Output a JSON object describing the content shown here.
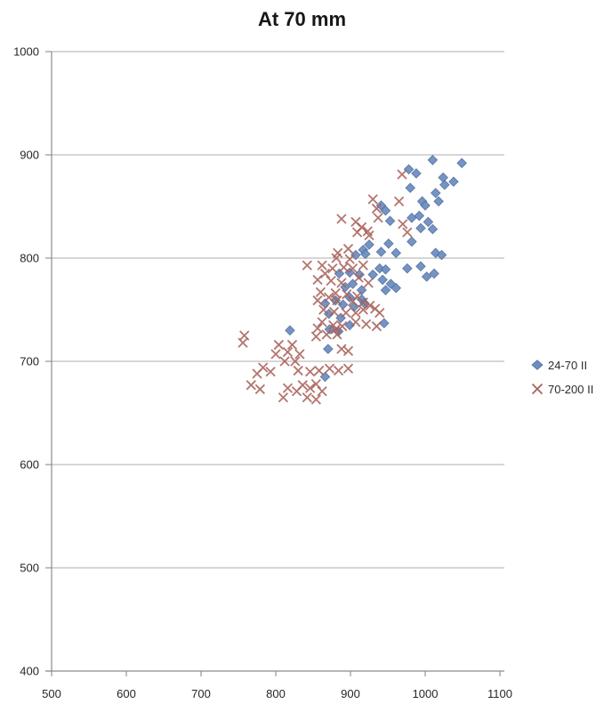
{
  "title": "At 70 mm",
  "chart_data": {
    "type": "scatter",
    "title": "At 70 mm",
    "xlabel": "",
    "ylabel": "",
    "xlim": [
      500,
      1100
    ],
    "ylim": [
      400,
      1000
    ],
    "x_ticks": [
      500,
      600,
      700,
      800,
      900,
      1000,
      1100
    ],
    "y_ticks": [
      400,
      500,
      600,
      700,
      800,
      900,
      1000
    ],
    "grid": "horizontal-only",
    "legend_position": "right-middle",
    "colors": {
      "background": "#ffffff",
      "gridline": "#adadad",
      "axis": "#8c8c8c",
      "tick_label": "#262626",
      "title": "#171717",
      "series1_fill": "#6e8ec1",
      "series1_stroke": "#4f6e9e",
      "series2_stroke": "#a8625a"
    },
    "series": [
      {
        "name": "24-70 II",
        "marker": "diamond",
        "points": [
          [
            1010,
            895
          ],
          [
            1049,
            892
          ],
          [
            978,
            886
          ],
          [
            988,
            882
          ],
          [
            1024,
            878
          ],
          [
            1038,
            874
          ],
          [
            1026,
            871
          ],
          [
            980,
            868
          ],
          [
            1014,
            863
          ],
          [
            996,
            855
          ],
          [
            1018,
            855
          ],
          [
            1000,
            851
          ],
          [
            941,
            851
          ],
          [
            947,
            846
          ],
          [
            992,
            841
          ],
          [
            982,
            839
          ],
          [
            953,
            836
          ],
          [
            1004,
            835
          ],
          [
            994,
            829
          ],
          [
            1010,
            828
          ],
          [
            982,
            816
          ],
          [
            925,
            813
          ],
          [
            951,
            814
          ],
          [
            917,
            808
          ],
          [
            961,
            805
          ],
          [
            1014,
            805
          ],
          [
            1022,
            803
          ],
          [
            941,
            806
          ],
          [
            907,
            803
          ],
          [
            920,
            804
          ],
          [
            899,
            786
          ],
          [
            885,
            785
          ],
          [
            912,
            784
          ],
          [
            930,
            784
          ],
          [
            976,
            790
          ],
          [
            994,
            792
          ],
          [
            1002,
            782
          ],
          [
            1012,
            785
          ],
          [
            939,
            790
          ],
          [
            947,
            789
          ],
          [
            943,
            779
          ],
          [
            954,
            775
          ],
          [
            903,
            775
          ],
          [
            893,
            772
          ],
          [
            915,
            769
          ],
          [
            961,
            771
          ],
          [
            947,
            769
          ],
          [
            899,
            762
          ],
          [
            915,
            760
          ],
          [
            880,
            759
          ],
          [
            919,
            756
          ],
          [
            890,
            755
          ],
          [
            905,
            753
          ],
          [
            866,
            756
          ],
          [
            871,
            746
          ],
          [
            887,
            742
          ],
          [
            945,
            737
          ],
          [
            899,
            735
          ],
          [
            872,
            731
          ],
          [
            884,
            729
          ],
          [
            819,
            730
          ],
          [
            870,
            712
          ],
          [
            866,
            685
          ]
        ]
      },
      {
        "name": "70-200 II",
        "marker": "x",
        "points": [
          [
            888,
            838
          ],
          [
            969,
            881
          ],
          [
            930,
            857
          ],
          [
            965,
            855
          ],
          [
            935,
            848
          ],
          [
            937,
            839
          ],
          [
            907,
            835
          ],
          [
            915,
            830
          ],
          [
            923,
            826
          ],
          [
            970,
            833
          ],
          [
            976,
            825
          ],
          [
            909,
            825
          ],
          [
            925,
            822
          ],
          [
            897,
            809
          ],
          [
            883,
            805
          ],
          [
            899,
            799
          ],
          [
            881,
            800
          ],
          [
            876,
            790
          ],
          [
            891,
            791
          ],
          [
            903,
            790
          ],
          [
            842,
            793
          ],
          [
            917,
            793
          ],
          [
            911,
            781
          ],
          [
            924,
            776
          ],
          [
            862,
            793
          ],
          [
            866,
            785
          ],
          [
            856,
            779
          ],
          [
            874,
            778
          ],
          [
            888,
            776
          ],
          [
            860,
            767
          ],
          [
            880,
            766
          ],
          [
            895,
            765
          ],
          [
            909,
            763
          ],
          [
            871,
            762
          ],
          [
            856,
            759
          ],
          [
            882,
            759
          ],
          [
            917,
            757
          ],
          [
            926,
            754
          ],
          [
            903,
            758
          ],
          [
            864,
            750
          ],
          [
            878,
            748
          ],
          [
            894,
            747
          ],
          [
            907,
            747
          ],
          [
            917,
            750
          ],
          [
            933,
            751
          ],
          [
            939,
            747
          ],
          [
            862,
            738
          ],
          [
            877,
            735
          ],
          [
            907,
            738
          ],
          [
            921,
            736
          ],
          [
            935,
            734
          ],
          [
            856,
            732
          ],
          [
            868,
            726
          ],
          [
            880,
            731
          ],
          [
            889,
            734
          ],
          [
            758,
            725
          ],
          [
            756,
            718
          ],
          [
            804,
            716
          ],
          [
            822,
            716
          ],
          [
            800,
            707
          ],
          [
            816,
            709
          ],
          [
            832,
            707
          ],
          [
            854,
            724
          ],
          [
            882,
            726
          ],
          [
            888,
            712
          ],
          [
            897,
            710
          ],
          [
            812,
            700
          ],
          [
            826,
            700
          ],
          [
            783,
            694
          ],
          [
            793,
            690
          ],
          [
            775,
            688
          ],
          [
            830,
            691
          ],
          [
            846,
            690
          ],
          [
            858,
            691
          ],
          [
            872,
            693
          ],
          [
            884,
            691
          ],
          [
            897,
            693
          ],
          [
            767,
            677
          ],
          [
            779,
            673
          ],
          [
            816,
            674
          ],
          [
            828,
            671
          ],
          [
            836,
            677
          ],
          [
            846,
            674
          ],
          [
            854,
            678
          ],
          [
            862,
            671
          ],
          [
            842,
            665
          ],
          [
            854,
            663
          ],
          [
            810,
            665
          ]
        ]
      }
    ]
  },
  "legend": {
    "items": [
      {
        "label": "24-70 II"
      },
      {
        "label": "70-200 II"
      }
    ]
  }
}
